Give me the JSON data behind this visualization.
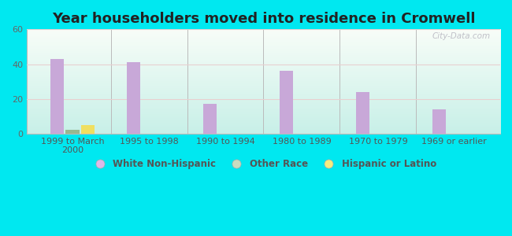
{
  "title": "Year householders moved into residence in Cromwell",
  "categories": [
    "1999 to March\n2000",
    "1995 to 1998",
    "1990 to 1994",
    "1980 to 1989",
    "1970 to 1979",
    "1969 or earlier"
  ],
  "series": {
    "White Non-Hispanic": [
      43,
      41,
      17,
      36,
      24,
      14
    ],
    "Other Race": [
      2,
      0,
      0,
      0,
      0,
      0
    ],
    "Hispanic or Latino": [
      5,
      0,
      0,
      0,
      0,
      0
    ]
  },
  "bar_colors": {
    "White Non-Hispanic": "#c8a8d8",
    "Other Race": "#98b890",
    "Hispanic or Latino": "#f0df60"
  },
  "legend_colors": {
    "White Non-Hispanic": "#ddb8e8",
    "Other Race": "#c8dcc0",
    "Hispanic or Latino": "#f5ec80"
  },
  "ylim": [
    0,
    60
  ],
  "yticks": [
    0,
    20,
    40,
    60
  ],
  "bar_width": 0.18,
  "background_outer": "#00e8f0",
  "bg_top": "#f8fdf8",
  "bg_bottom": "#c8f0e8",
  "watermark": "City-Data.com",
  "title_fontsize": 13,
  "tick_fontsize": 8,
  "legend_fontsize": 8.5,
  "series_offsets": [
    -0.2,
    0.0,
    0.2
  ]
}
